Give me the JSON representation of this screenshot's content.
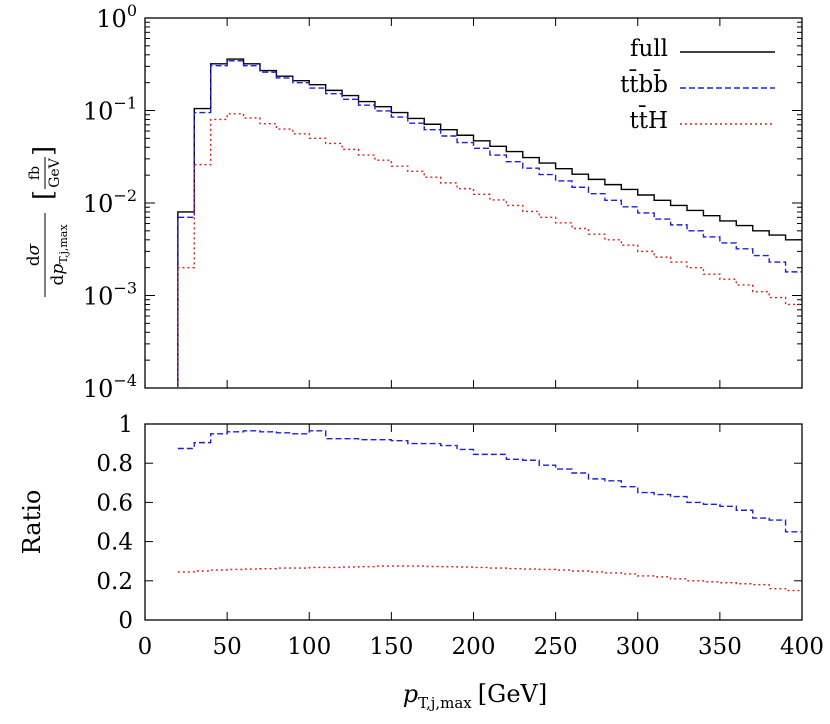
{
  "chart_data": [
    {
      "type": "line",
      "panel": "main",
      "scale": "log",
      "ylim": [
        0.0001,
        1
      ],
      "xlim": [
        0,
        400
      ],
      "ytick_mantissa": [
        "10",
        "10",
        "10",
        "10",
        "10"
      ],
      "ytick_exponents": [
        "0",
        "-1",
        "-2",
        "-3",
        "-4"
      ],
      "ylabel": {
        "numerator_d": "d",
        "numerator_sigma": "σ",
        "denominator_d": "d",
        "denominator_p": "p",
        "denominator_sub": "T,j,max",
        "unit_num": "fb",
        "unit_den": "GeV"
      },
      "bin_edges": [
        20,
        30,
        40,
        50,
        60,
        70,
        80,
        90,
        100,
        110,
        120,
        130,
        140,
        150,
        160,
        170,
        180,
        190,
        200,
        210,
        220,
        230,
        240,
        250,
        260,
        270,
        280,
        290,
        300,
        310,
        320,
        330,
        340,
        350,
        360,
        370,
        380,
        390,
        400
      ],
      "legend_position": "top-right",
      "series": [
        {
          "name": "full",
          "color": "#000000",
          "dash": "solid",
          "values": [
            0.008,
            0.105,
            0.32,
            0.36,
            0.32,
            0.27,
            0.235,
            0.21,
            0.19,
            0.165,
            0.145,
            0.125,
            0.11,
            0.095,
            0.082,
            0.071,
            0.062,
            0.054,
            0.047,
            0.041,
            0.036,
            0.031,
            0.027,
            0.0235,
            0.0205,
            0.018,
            0.0158,
            0.014,
            0.0122,
            0.0107,
            0.0094,
            0.0083,
            0.0073,
            0.0064,
            0.0057,
            0.005,
            0.0045,
            0.004
          ]
        },
        {
          "name": "tt̄bb̄",
          "color": "#1f1fdd",
          "dash": "dashed",
          "values": [
            0.007,
            0.095,
            0.305,
            0.345,
            0.305,
            0.26,
            0.225,
            0.2,
            0.175,
            0.152,
            0.132,
            0.114,
            0.099,
            0.085,
            0.073,
            0.062,
            0.053,
            0.045,
            0.039,
            0.033,
            0.028,
            0.0238,
            0.0203,
            0.0173,
            0.0148,
            0.0126,
            0.0107,
            0.0091,
            0.0078,
            0.0067,
            0.0058,
            0.005,
            0.0043,
            0.0037,
            0.0032,
            0.0027,
            0.0023,
            0.0018
          ]
        },
        {
          "name": "tt̄H",
          "color": "#e01b1b",
          "dash": "dotted",
          "values": [
            0.002,
            0.026,
            0.08,
            0.092,
            0.083,
            0.072,
            0.063,
            0.056,
            0.05,
            0.044,
            0.038,
            0.033,
            0.029,
            0.025,
            0.022,
            0.019,
            0.0165,
            0.0143,
            0.0124,
            0.0108,
            0.0094,
            0.0081,
            0.007,
            0.0061,
            0.0053,
            0.0046,
            0.004,
            0.0035,
            0.003,
            0.0026,
            0.0023,
            0.002,
            0.0017,
            0.0015,
            0.0013,
            0.0011,
            0.00095,
            0.0008
          ]
        }
      ]
    },
    {
      "type": "line",
      "panel": "ratio",
      "scale": "linear",
      "ylim": [
        0,
        1
      ],
      "xlim": [
        0,
        400
      ],
      "ylabel": "Ratio",
      "xlabel": {
        "p": "p",
        "sub": "T,j,max",
        "unit": "[GeV]"
      },
      "yticks": [
        "0",
        "0.2",
        "0.4",
        "0.6",
        "0.8",
        "1"
      ],
      "xticks": [
        "0",
        "50",
        "100",
        "150",
        "200",
        "250",
        "300",
        "350",
        "400"
      ],
      "bin_edges": [
        20,
        30,
        40,
        50,
        60,
        70,
        80,
        90,
        100,
        110,
        120,
        130,
        140,
        150,
        160,
        170,
        180,
        190,
        200,
        210,
        220,
        230,
        240,
        250,
        260,
        270,
        280,
        290,
        300,
        310,
        320,
        330,
        340,
        350,
        360,
        370,
        380,
        390,
        400
      ],
      "series": [
        {
          "name": "tt̄bb̄",
          "color": "#1f1fdd",
          "dash": "dashed",
          "values": [
            0.875,
            0.905,
            0.95,
            0.96,
            0.965,
            0.96,
            0.955,
            0.95,
            0.965,
            0.925,
            0.925,
            0.92,
            0.92,
            0.915,
            0.9,
            0.9,
            0.89,
            0.87,
            0.845,
            0.845,
            0.82,
            0.815,
            0.79,
            0.77,
            0.75,
            0.72,
            0.71,
            0.68,
            0.65,
            0.64,
            0.63,
            0.6,
            0.59,
            0.58,
            0.56,
            0.52,
            0.51,
            0.45
          ]
        },
        {
          "name": "tt̄H",
          "color": "#e01b1b",
          "dash": "dotted",
          "values": [
            0.245,
            0.25,
            0.255,
            0.258,
            0.26,
            0.262,
            0.265,
            0.265,
            0.268,
            0.268,
            0.27,
            0.272,
            0.275,
            0.275,
            0.275,
            0.273,
            0.272,
            0.27,
            0.268,
            0.265,
            0.262,
            0.26,
            0.258,
            0.255,
            0.25,
            0.245,
            0.24,
            0.235,
            0.225,
            0.22,
            0.21,
            0.2,
            0.195,
            0.19,
            0.185,
            0.18,
            0.16,
            0.15
          ]
        }
      ]
    }
  ]
}
